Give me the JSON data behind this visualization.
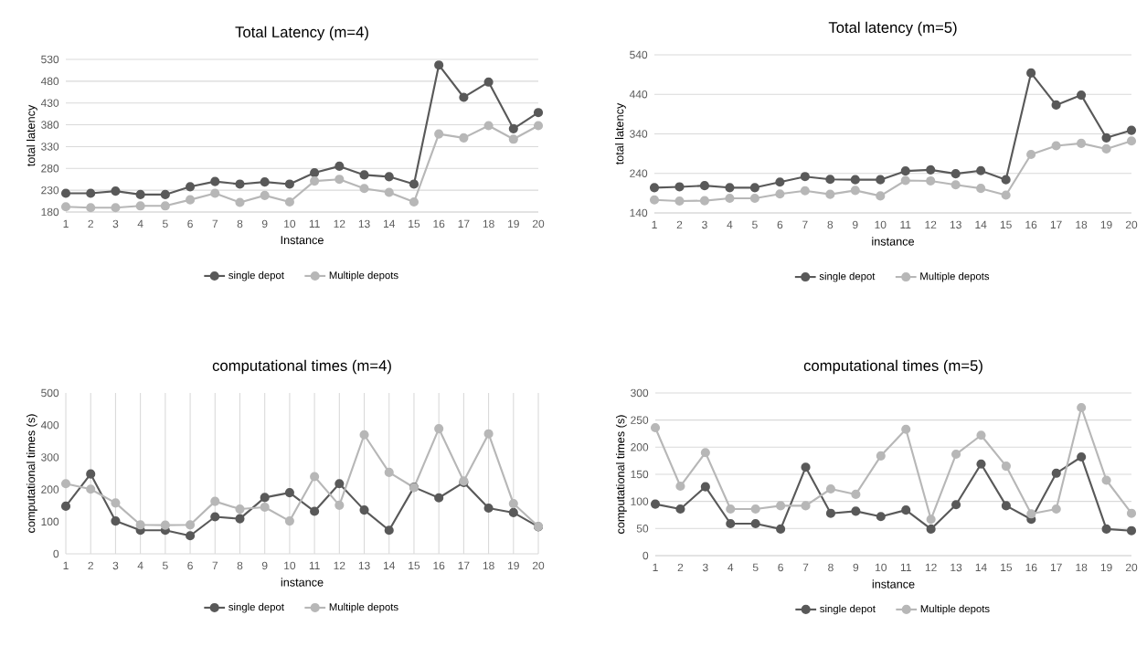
{
  "chart_data": [
    {
      "type": "line",
      "title": "Total Latency (m=4)",
      "xlabel": "Instance",
      "ylabel": "total latency",
      "categories": [
        "1",
        "2",
        "3",
        "4",
        "5",
        "6",
        "7",
        "8",
        "9",
        "10",
        "11",
        "12",
        "13",
        "14",
        "15",
        "16",
        "17",
        "18",
        "19",
        "20"
      ],
      "ylim": [
        180,
        530
      ],
      "yticks": [
        180,
        230,
        280,
        330,
        380,
        430,
        480,
        530
      ],
      "grid": "y",
      "legend": "bottom",
      "marker": "circle",
      "series": [
        {
          "name": "single depot",
          "color": "#595959",
          "values": [
            223,
            223,
            228,
            220,
            220,
            238,
            250,
            244,
            249,
            244,
            270,
            285,
            265,
            261,
            244,
            517,
            443,
            478,
            371,
            408
          ]
        },
        {
          "name": "Multiple depots",
          "color": "#b7b7b7",
          "values": [
            192,
            190,
            190,
            194,
            194,
            208,
            223,
            202,
            218,
            203,
            251,
            255,
            234,
            225,
            203,
            359,
            350,
            378,
            347,
            378
          ]
        }
      ]
    },
    {
      "type": "line",
      "title": "Total latency (m=5)",
      "xlabel": "instance",
      "ylabel": "total latency",
      "categories": [
        "1",
        "2",
        "3",
        "4",
        "5",
        "6",
        "7",
        "8",
        "9",
        "10",
        "11",
        "12",
        "13",
        "14",
        "15",
        "16",
        "17",
        "18",
        "19",
        "20"
      ],
      "ylim": [
        140,
        540
      ],
      "yticks": [
        140,
        240,
        340,
        440,
        540
      ],
      "grid": "y",
      "legend": "bottom",
      "marker": "circle",
      "series": [
        {
          "name": "single depot",
          "color": "#595959",
          "values": [
            204,
            206,
            209,
            204,
            204,
            218,
            232,
            225,
            224,
            224,
            246,
            249,
            239,
            247,
            224,
            494,
            413,
            438,
            330,
            349
          ]
        },
        {
          "name": "Multiple depots",
          "color": "#b7b7b7",
          "values": [
            173,
            170,
            171,
            177,
            177,
            188,
            196,
            187,
            197,
            183,
            222,
            221,
            211,
            202,
            185,
            288,
            310,
            316,
            302,
            322
          ]
        }
      ]
    },
    {
      "type": "line",
      "title": "computational times (m=4)",
      "xlabel": "instance",
      "ylabel": "computational times  (s)",
      "categories": [
        "1",
        "2",
        "3",
        "4",
        "5",
        "6",
        "7",
        "8",
        "9",
        "10",
        "11",
        "12",
        "13",
        "14",
        "15",
        "16",
        "17",
        "18",
        "19",
        "20"
      ],
      "ylim": [
        0,
        500
      ],
      "yticks": [
        0,
        100,
        200,
        300,
        400,
        500
      ],
      "grid": "x",
      "legend": "bottom",
      "marker": "circle",
      "series": [
        {
          "name": "single depot",
          "color": "#595959",
          "values": [
            148,
            248,
            102,
            73,
            73,
            56,
            115,
            109,
            175,
            190,
            132,
            218,
            136,
            73,
            207,
            174,
            222,
            142,
            128,
            84
          ]
        },
        {
          "name": "Multiple depots",
          "color": "#b7b7b7",
          "values": [
            218,
            201,
            158,
            90,
            89,
            90,
            163,
            139,
            145,
            102,
            240,
            151,
            370,
            253,
            206,
            389,
            226,
            373,
            156,
            85
          ]
        }
      ]
    },
    {
      "type": "line",
      "title": "computational times (m=5)",
      "xlabel": "instance",
      "ylabel": "computational times  (s)",
      "categories": [
        "1",
        "2",
        "3",
        "4",
        "5",
        "6",
        "7",
        "8",
        "9",
        "10",
        "11",
        "12",
        "13",
        "14",
        "15",
        "16",
        "17",
        "18",
        "19",
        "20"
      ],
      "ylim": [
        0,
        300
      ],
      "yticks": [
        0,
        50,
        100,
        150,
        200,
        250,
        300
      ],
      "grid": "y",
      "legend": "bottom",
      "marker": "circle",
      "series": [
        {
          "name": "single depot",
          "color": "#595959",
          "values": [
            95,
            86,
            127,
            59,
            59,
            49,
            163,
            78,
            82,
            72,
            84,
            49,
            94,
            169,
            92,
            67,
            152,
            182,
            49,
            46
          ]
        },
        {
          "name": "Multiple depots",
          "color": "#b7b7b7",
          "values": [
            236,
            128,
            190,
            86,
            86,
            92,
            92,
            123,
            113,
            184,
            233,
            67,
            187,
            222,
            165,
            77,
            86,
            273,
            139,
            78
          ]
        }
      ]
    }
  ]
}
